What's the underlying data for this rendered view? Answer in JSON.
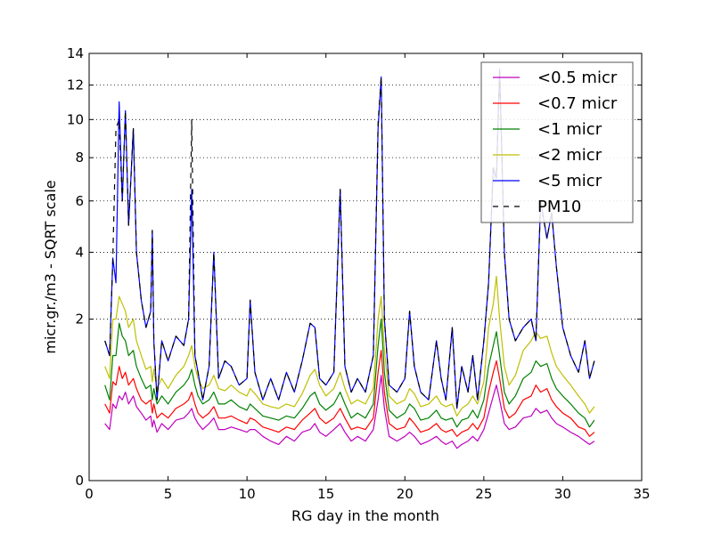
{
  "chart_data": {
    "type": "line",
    "xlabel": "RG day in the month",
    "ylabel": "micr.gr./m3 - SQRT scale",
    "xlim": [
      0,
      35
    ],
    "ylim": [
      0,
      14
    ],
    "y_scale": "sqrt",
    "x_ticks": [
      "0",
      "5",
      "10",
      "15",
      "20",
      "25",
      "30",
      "35"
    ],
    "y_ticks": [
      "0",
      "2",
      "4",
      "6",
      "8",
      "10",
      "12",
      "14"
    ],
    "grid": "y-dotted",
    "legend_position": "top-right",
    "x": [
      1.0,
      1.3,
      1.5,
      1.7,
      1.9,
      2.1,
      2.3,
      2.5,
      2.8,
      3.0,
      3.3,
      3.6,
      3.9,
      4.0,
      4.1,
      4.3,
      4.6,
      5.0,
      5.5,
      6.0,
      6.3,
      6.5,
      6.7,
      6.9,
      7.2,
      7.6,
      7.9,
      8.2,
      8.6,
      9.0,
      9.5,
      10.0,
      10.2,
      10.5,
      11.0,
      11.5,
      12.0,
      12.5,
      13.0,
      13.5,
      14.0,
      14.3,
      14.6,
      15.0,
      15.5,
      15.9,
      16.2,
      16.6,
      17.0,
      17.5,
      18.0,
      18.3,
      18.5,
      18.7,
      19.0,
      19.5,
      20.0,
      20.3,
      20.6,
      21.0,
      21.5,
      22.0,
      22.3,
      22.6,
      23.0,
      23.3,
      23.6,
      24.0,
      24.3,
      24.6,
      25.0,
      25.3,
      25.6,
      25.8,
      26.0,
      26.3,
      26.6,
      27.0,
      27.5,
      28.0,
      28.3,
      28.6,
      29.0,
      29.3,
      29.6,
      30.0,
      30.5,
      31.0,
      31.4,
      31.7,
      32.0
    ],
    "series": [
      {
        "name": "<0.5 micr",
        "color": "#bf00bf",
        "style": "solid",
        "values": [
          0.25,
          0.2,
          0.45,
          0.4,
          0.55,
          0.5,
          0.6,
          0.45,
          0.55,
          0.42,
          0.35,
          0.28,
          0.32,
          0.22,
          0.28,
          0.18,
          0.25,
          0.2,
          0.28,
          0.3,
          0.35,
          0.4,
          0.3,
          0.25,
          0.2,
          0.25,
          0.3,
          0.2,
          0.2,
          0.22,
          0.2,
          0.18,
          0.2,
          0.2,
          0.15,
          0.12,
          0.1,
          0.15,
          0.12,
          0.18,
          0.2,
          0.25,
          0.18,
          0.15,
          0.2,
          0.25,
          0.18,
          0.12,
          0.15,
          0.12,
          0.2,
          0.5,
          0.85,
          0.4,
          0.15,
          0.12,
          0.15,
          0.18,
          0.15,
          0.1,
          0.12,
          0.15,
          0.12,
          0.1,
          0.12,
          0.08,
          0.1,
          0.12,
          0.15,
          0.12,
          0.2,
          0.35,
          0.55,
          0.7,
          0.5,
          0.25,
          0.2,
          0.22,
          0.3,
          0.32,
          0.4,
          0.35,
          0.38,
          0.3,
          0.25,
          0.22,
          0.18,
          0.15,
          0.12,
          0.1,
          0.12
        ]
      },
      {
        "name": "<0.7 micr",
        "color": "#ff0000",
        "style": "solid",
        "values": [
          0.45,
          0.35,
          0.75,
          0.7,
          1.0,
          0.8,
          0.9,
          0.7,
          0.8,
          0.65,
          0.5,
          0.45,
          0.5,
          0.35,
          0.45,
          0.3,
          0.35,
          0.3,
          0.4,
          0.45,
          0.5,
          0.6,
          0.45,
          0.35,
          0.3,
          0.35,
          0.42,
          0.3,
          0.3,
          0.32,
          0.28,
          0.25,
          0.3,
          0.28,
          0.22,
          0.2,
          0.18,
          0.22,
          0.2,
          0.28,
          0.35,
          0.4,
          0.3,
          0.25,
          0.3,
          0.4,
          0.3,
          0.2,
          0.22,
          0.2,
          0.3,
          0.9,
          1.3,
          0.6,
          0.25,
          0.2,
          0.22,
          0.3,
          0.25,
          0.18,
          0.2,
          0.25,
          0.2,
          0.18,
          0.2,
          0.15,
          0.18,
          0.2,
          0.25,
          0.2,
          0.3,
          0.6,
          0.9,
          1.1,
          0.8,
          0.4,
          0.3,
          0.35,
          0.5,
          0.55,
          0.7,
          0.6,
          0.65,
          0.5,
          0.42,
          0.35,
          0.3,
          0.22,
          0.2,
          0.15,
          0.18
        ]
      },
      {
        "name": "<1 micr",
        "color": "#008000",
        "style": "solid",
        "values": [
          0.7,
          0.5,
          1.2,
          1.2,
          1.9,
          1.6,
          1.5,
          1.2,
          1.3,
          1.0,
          0.8,
          0.65,
          0.7,
          0.5,
          0.65,
          0.45,
          0.55,
          0.45,
          0.6,
          0.7,
          0.8,
          0.95,
          0.7,
          0.55,
          0.45,
          0.5,
          0.6,
          0.45,
          0.45,
          0.5,
          0.42,
          0.38,
          0.45,
          0.4,
          0.32,
          0.3,
          0.28,
          0.32,
          0.3,
          0.4,
          0.55,
          0.6,
          0.45,
          0.38,
          0.45,
          0.6,
          0.45,
          0.3,
          0.35,
          0.3,
          0.45,
          1.4,
          2.0,
          0.9,
          0.38,
          0.3,
          0.35,
          0.45,
          0.4,
          0.28,
          0.3,
          0.38,
          0.3,
          0.28,
          0.3,
          0.22,
          0.28,
          0.3,
          0.38,
          0.3,
          0.5,
          1.0,
          1.4,
          1.7,
          1.2,
          0.6,
          0.45,
          0.55,
          0.8,
          0.9,
          1.1,
          1.0,
          1.05,
          0.8,
          0.65,
          0.55,
          0.45,
          0.35,
          0.3,
          0.22,
          0.28
        ]
      },
      {
        "name": "<2 micr",
        "color": "#bfbf00",
        "style": "solid",
        "values": [
          1.0,
          0.8,
          2.0,
          2.0,
          2.6,
          2.4,
          2.2,
          1.8,
          2.0,
          1.5,
          1.2,
          0.95,
          1.0,
          0.75,
          0.95,
          0.65,
          0.8,
          0.65,
          0.85,
          1.0,
          1.2,
          1.4,
          1.0,
          0.8,
          0.65,
          0.7,
          0.85,
          0.65,
          0.62,
          0.7,
          0.6,
          0.55,
          0.65,
          0.58,
          0.45,
          0.42,
          0.4,
          0.45,
          0.42,
          0.58,
          0.85,
          0.95,
          0.7,
          0.55,
          0.65,
          0.9,
          0.65,
          0.45,
          0.5,
          0.45,
          0.65,
          2.0,
          2.6,
          1.3,
          0.55,
          0.45,
          0.5,
          0.65,
          0.58,
          0.42,
          0.45,
          0.55,
          0.45,
          0.42,
          0.45,
          0.32,
          0.4,
          0.45,
          0.55,
          0.45,
          0.75,
          1.8,
          2.4,
          3.2,
          2.0,
          1.0,
          0.7,
          0.85,
          1.3,
          1.5,
          1.7,
          1.55,
          1.6,
          1.25,
          1.0,
          0.85,
          0.7,
          0.55,
          0.45,
          0.35,
          0.42
        ]
      },
      {
        "name": "<5 micr",
        "color": "#0000ff",
        "style": "solid",
        "values": [
          1.5,
          1.2,
          3.8,
          3.0,
          11.0,
          6.0,
          10.5,
          5.0,
          9.5,
          4.0,
          2.5,
          1.8,
          2.2,
          4.8,
          1.5,
          0.5,
          1.5,
          1.1,
          1.6,
          1.4,
          2.0,
          6.5,
          1.2,
          0.9,
          0.5,
          1.0,
          4.0,
          0.8,
          1.1,
          1.0,
          0.7,
          0.8,
          2.5,
          0.9,
          0.5,
          0.8,
          0.5,
          0.9,
          0.6,
          1.1,
          1.9,
          1.8,
          0.8,
          0.7,
          0.9,
          6.5,
          1.0,
          0.6,
          0.8,
          0.6,
          1.2,
          9.5,
          12.5,
          2.0,
          0.7,
          0.6,
          0.8,
          2.2,
          1.0,
          0.6,
          0.5,
          1.5,
          0.8,
          0.5,
          1.8,
          0.4,
          1.0,
          0.6,
          1.2,
          0.5,
          1.5,
          3.0,
          7.5,
          7.0,
          13.0,
          4.0,
          2.0,
          1.5,
          1.8,
          2.0,
          1.5,
          6.0,
          4.5,
          5.5,
          3.5,
          1.8,
          1.2,
          0.9,
          1.5,
          0.8,
          1.1
        ]
      },
      {
        "name": "PM10",
        "color": "#000000",
        "style": "dashed",
        "values": [
          1.5,
          1.2,
          3.8,
          9.5,
          10.0,
          6.0,
          10.5,
          5.0,
          9.5,
          4.0,
          2.5,
          1.8,
          2.2,
          4.8,
          1.5,
          0.5,
          1.5,
          1.1,
          1.6,
          1.4,
          2.0,
          10.0,
          1.2,
          0.9,
          0.5,
          1.0,
          4.0,
          0.8,
          1.1,
          1.0,
          0.7,
          0.8,
          2.5,
          0.9,
          0.5,
          0.8,
          0.5,
          0.9,
          0.6,
          1.1,
          1.9,
          1.8,
          0.8,
          0.7,
          0.9,
          6.5,
          1.0,
          0.6,
          0.8,
          0.6,
          1.2,
          9.8,
          12.5,
          2.0,
          0.7,
          0.6,
          0.8,
          2.2,
          1.0,
          0.6,
          0.5,
          1.5,
          0.8,
          0.5,
          1.8,
          0.4,
          1.0,
          0.6,
          1.2,
          0.5,
          1.5,
          3.0,
          7.5,
          7.0,
          13.0,
          4.0,
          2.0,
          1.5,
          1.8,
          2.0,
          1.5,
          6.0,
          4.5,
          5.5,
          3.5,
          1.8,
          1.2,
          0.9,
          1.5,
          0.8,
          1.1
        ]
      }
    ]
  }
}
